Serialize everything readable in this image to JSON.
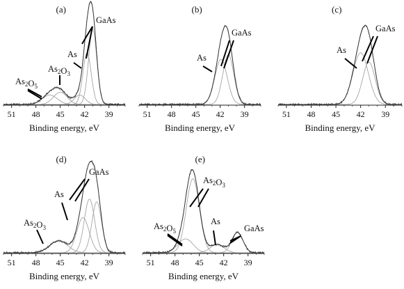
{
  "figure": {
    "x_axis_title": "Binding energy, eV"
  },
  "chart_data": [
    {
      "type": "line",
      "panel": "(a)",
      "xlabel": "Binding energy, eV",
      "xlim": [
        52,
        37
      ],
      "x_reversed": true,
      "x_ticks": [
        51,
        48,
        45,
        42,
        39
      ],
      "ylim": [
        0,
        1.0
      ],
      "components": [
        {
          "label": "GaAs",
          "center": 41.0,
          "fwhm": 1.2,
          "height": 0.8
        },
        {
          "label": "GaAs",
          "center": 41.7,
          "fwhm": 1.2,
          "height": 0.55
        },
        {
          "label": "As",
          "center": 42.6,
          "fwhm": 1.6,
          "height": 0.1
        },
        {
          "label": "As2O3",
          "center": 45.0,
          "fwhm": 2.0,
          "height": 0.13
        },
        {
          "label": "As2O5",
          "center": 46.3,
          "fwhm": 2.2,
          "height": 0.1
        }
      ],
      "annotations": [
        {
          "text": "GaAs",
          "peak": 41.2
        },
        {
          "text": "As",
          "peak": 42.4
        },
        {
          "text": "As2O3",
          "peak": 45.0
        },
        {
          "text": "As2O5",
          "peak": 46.5
        }
      ]
    },
    {
      "type": "line",
      "panel": "(b)",
      "xlabel": "Binding energy, eV",
      "xlim": [
        52,
        37
      ],
      "x_reversed": true,
      "x_ticks": [
        51,
        48,
        45,
        42,
        39
      ],
      "ylim": [
        0,
        1.0
      ],
      "components": [
        {
          "label": "GaAs",
          "center": 41.0,
          "fwhm": 1.6,
          "height": 0.53
        },
        {
          "label": "As",
          "center": 41.9,
          "fwhm": 1.8,
          "height": 0.48
        }
      ],
      "annotations": [
        {
          "text": "GaAs",
          "peak": 41.0
        },
        {
          "text": "As",
          "peak": 42.3
        }
      ]
    },
    {
      "type": "line",
      "panel": "(c)",
      "xlabel": "Binding energy, eV",
      "xlim": [
        52,
        37
      ],
      "x_reversed": true,
      "x_ticks": [
        51,
        48,
        45,
        42,
        39
      ],
      "ylim": [
        0,
        1.0
      ],
      "components": [
        {
          "label": "GaAs",
          "center": 41.0,
          "fwhm": 1.8,
          "height": 0.45
        },
        {
          "label": "As",
          "center": 42.0,
          "fwhm": 2.2,
          "height": 0.55
        }
      ],
      "annotations": [
        {
          "text": "GaAs",
          "peak": 41.0
        },
        {
          "text": "As",
          "peak": 42.2
        }
      ]
    },
    {
      "type": "line",
      "panel": "(d)",
      "xlabel": "Binding energy, eV",
      "xlim": [
        52,
        37
      ],
      "x_reversed": true,
      "x_ticks": [
        51,
        48,
        45,
        42,
        39
      ],
      "ylim": [
        0,
        1.0
      ],
      "components": [
        {
          "label": "GaAs",
          "center": 40.5,
          "fwhm": 1.4,
          "height": 0.55
        },
        {
          "label": "GaAs",
          "center": 41.4,
          "fwhm": 1.5,
          "height": 0.58
        },
        {
          "label": "As",
          "center": 42.2,
          "fwhm": 1.8,
          "height": 0.38
        },
        {
          "label": "As2O3",
          "center": 45.2,
          "fwhm": 2.6,
          "height": 0.13
        }
      ],
      "annotations": [
        {
          "text": "GaAs",
          "peak": 40.9
        },
        {
          "text": "As",
          "peak": 42.2
        },
        {
          "text": "As2O3",
          "peak": 45.5
        }
      ]
    },
    {
      "type": "line",
      "panel": "(e)",
      "xlabel": "Binding energy, eV",
      "xlim": [
        52,
        37
      ],
      "x_reversed": true,
      "x_ticks": [
        51,
        48,
        45,
        42,
        39
      ],
      "ylim": [
        0,
        1.0
      ],
      "components": [
        {
          "label": "GaAs",
          "center": 40.3,
          "fwhm": 1.6,
          "height": 0.22
        },
        {
          "label": "As",
          "center": 42.8,
          "fwhm": 2.0,
          "height": 0.09
        },
        {
          "label": "As2O3",
          "center": 45.8,
          "fwhm": 1.9,
          "height": 0.8
        },
        {
          "label": "As2O5",
          "center": 46.7,
          "fwhm": 2.2,
          "height": 0.15
        }
      ],
      "annotations": [
        {
          "text": "GaAs",
          "peak": 40.5
        },
        {
          "text": "As",
          "peak": 42.8
        },
        {
          "text": "As2O3",
          "peak": 45.8
        },
        {
          "text": "As2O5",
          "peak": 47.3
        }
      ]
    }
  ]
}
